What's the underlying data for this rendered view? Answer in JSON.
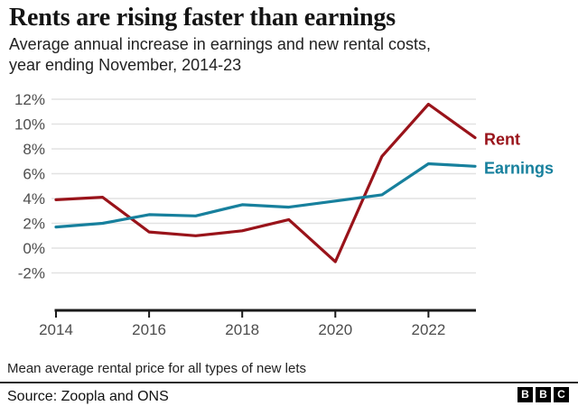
{
  "header": {
    "title": "Rents are rising faster than earnings",
    "subtitle_line1": "Average annual increase in earnings and new rental costs,",
    "subtitle_line2": "year ending November, 2014-23"
  },
  "chart_data": {
    "type": "line",
    "x": [
      2014,
      2015,
      2016,
      2017,
      2018,
      2019,
      2020,
      2021,
      2022,
      2023
    ],
    "series": [
      {
        "name": "Rent",
        "color": "#99131a",
        "values": [
          3.9,
          4.1,
          1.3,
          1.0,
          1.4,
          2.3,
          -1.1,
          7.4,
          11.6,
          8.9
        ]
      },
      {
        "name": "Earnings",
        "color": "#17809d",
        "values": [
          1.7,
          2.0,
          2.7,
          2.6,
          3.5,
          3.3,
          3.8,
          4.3,
          6.8,
          6.6
        ]
      }
    ],
    "title": "Rents are rising faster than earnings",
    "subtitle": "Average annual increase in earnings and new rental costs, year ending November, 2014-23",
    "xlabel": "",
    "ylabel": "",
    "ylim": [
      -3,
      13
    ],
    "xlim": [
      2014,
      2023
    ],
    "yticks": [
      12,
      10,
      8,
      6,
      4,
      2,
      0,
      -2
    ],
    "ytick_labels": [
      "12%",
      "10%",
      "8%",
      "6%",
      "4%",
      "2%",
      "0%",
      "-2%"
    ],
    "xticks": [
      2014,
      2016,
      2018,
      2020,
      2022
    ],
    "xtick_labels": [
      "2014",
      "2016",
      "2018",
      "2020",
      "2022"
    ],
    "grid": "horizontal-only",
    "legend_position": "inline-right-of-last-point"
  },
  "footer": {
    "footnote": "Mean average rental price for all types of new lets",
    "source": "Source: Zoopla and ONS",
    "logo_letters": [
      "B",
      "B",
      "C"
    ]
  },
  "colors": {
    "rent": "#99131a",
    "earnings": "#17809d",
    "grid": "#e2e2e2",
    "axis": "#1a1a1a",
    "tick_label": "#4d4d4d",
    "text": "#141414"
  }
}
